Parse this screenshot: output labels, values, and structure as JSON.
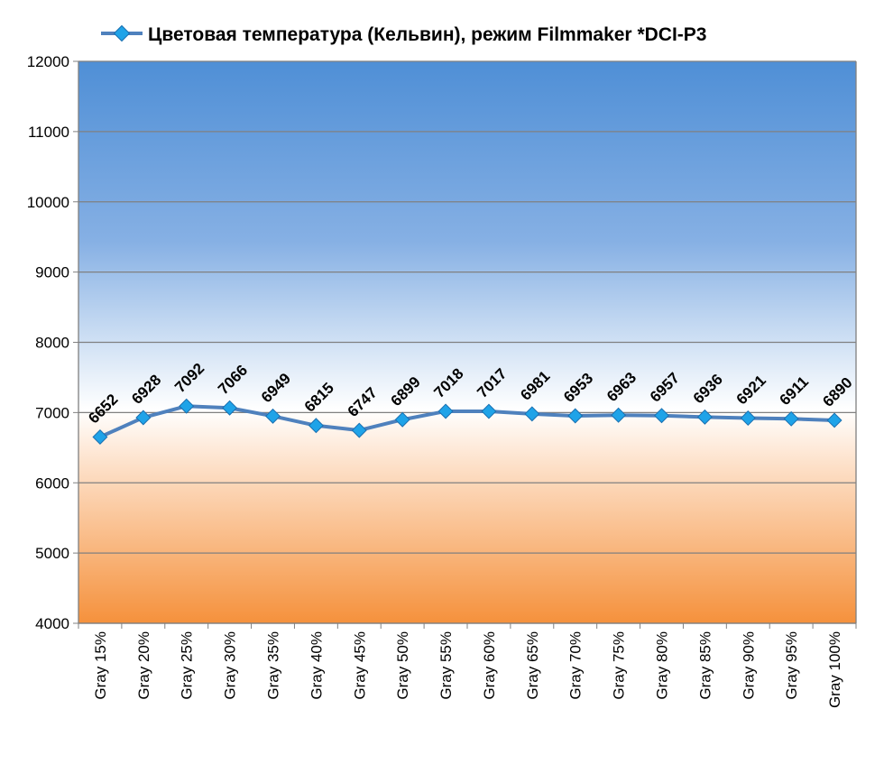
{
  "chart_data": {
    "type": "line",
    "title": "",
    "xlabel": "",
    "ylabel": "",
    "ylim": [
      4000,
      12000
    ],
    "y_ticks": [
      4000,
      5000,
      6000,
      7000,
      8000,
      9000,
      10000,
      11000,
      12000
    ],
    "grid": true,
    "legend_position": "top",
    "categories": [
      "Gray 15%",
      "Gray 20%",
      "Gray 25%",
      "Gray 30%",
      "Gray 35%",
      "Gray 40%",
      "Gray 45%",
      "Gray 50%",
      "Gray 55%",
      "Gray 60%",
      "Gray 65%",
      "Gray 70%",
      "Gray 75%",
      "Gray 80%",
      "Gray 85%",
      "Gray 90%",
      "Gray 95%",
      "Gray 100%"
    ],
    "series": [
      {
        "name": "Цветовая температура (Кельвин), режим Filmmaker *DCI-P3",
        "color": "#4f81bd",
        "marker_color": "#1fa3e8",
        "values": [
          6652,
          6928,
          7092,
          7066,
          6949,
          6815,
          6747,
          6899,
          7018,
          7017,
          6981,
          6953,
          6963,
          6957,
          6936,
          6921,
          6911,
          6890
        ]
      }
    ],
    "background_gradient": [
      "#4f8fd6",
      "#ffffff",
      "#f5913c"
    ]
  }
}
